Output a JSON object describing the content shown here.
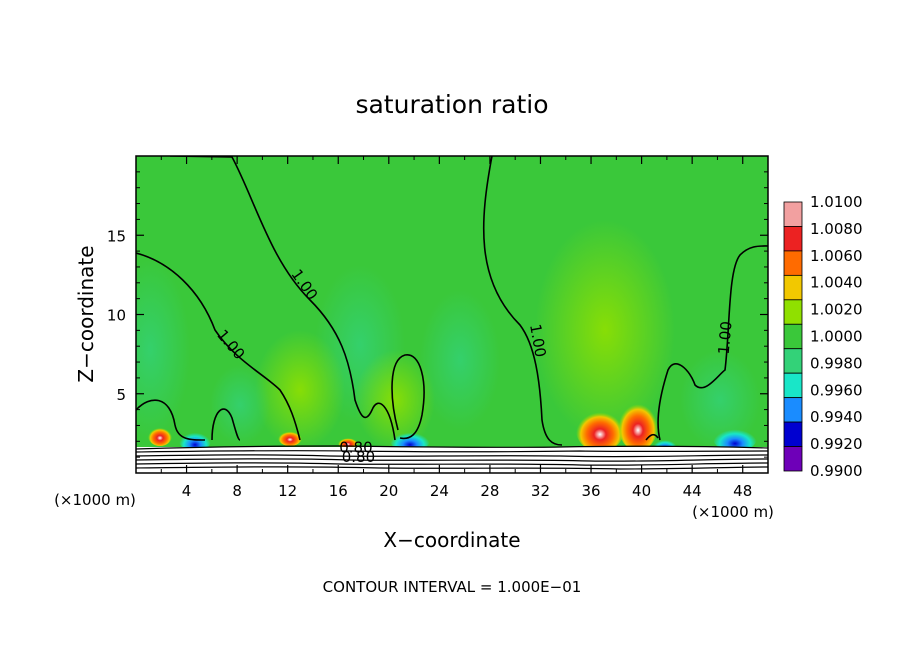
{
  "chart_data": {
    "type": "heatmap",
    "title": "saturation ratio",
    "xlabel": "X−coordinate",
    "ylabel": "Z−coordinate",
    "x_unit": "(×1000 m)",
    "z_unit": "(×1000 m)",
    "xlim": [
      0,
      50
    ],
    "ylim": [
      0,
      20
    ],
    "x_ticks": [
      4,
      8,
      12,
      16,
      20,
      24,
      28,
      32,
      36,
      40,
      44,
      48
    ],
    "y_ticks": [
      5,
      10,
      15
    ],
    "footnote": "CONTOUR INTERVAL = 1.000E−01",
    "contour_labels": [
      {
        "text": "1.00",
        "x": 13,
        "z": 11.7
      },
      {
        "text": "1.00",
        "x": 7.2,
        "z": 7.9
      },
      {
        "text": "1.00",
        "x": 31.4,
        "z": 8.3
      },
      {
        "text": "1.00",
        "x": 47,
        "z": 8.5
      },
      {
        "text": "0.80",
        "x": 17.4,
        "z": 1.3
      },
      {
        "text": "0.80",
        "x": 17.6,
        "z": 0.7
      }
    ],
    "colorbar": {
      "levels": [
        "1.0100",
        "1.0080",
        "1.0060",
        "1.0040",
        "1.0020",
        "1.0000",
        "0.9980",
        "0.9960",
        "0.9940",
        "0.9920",
        "0.9900"
      ],
      "colors": [
        "#f2a0a0",
        "#ec2222",
        "#ff6b00",
        "#f2c800",
        "#90e000",
        "#3ac83a",
        "#33d278",
        "#19e6c8",
        "#1a8cff",
        "#0000d0",
        "#6e00b8"
      ]
    }
  }
}
